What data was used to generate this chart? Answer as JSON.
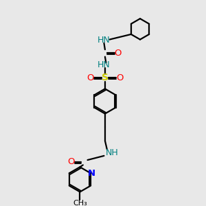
{
  "bg_color": "#e8e8e8",
  "atom_colors": {
    "N": "#008080",
    "O": "#ff0000",
    "S": "#cccc00",
    "C": "#000000"
  },
  "N_blue": "#0000ff",
  "bond_color": "#000000",
  "bond_lw": 1.6,
  "figsize": [
    3.0,
    3.0
  ],
  "dpi": 100,
  "xlim": [
    0,
    10
  ],
  "ylim": [
    0,
    10
  ]
}
